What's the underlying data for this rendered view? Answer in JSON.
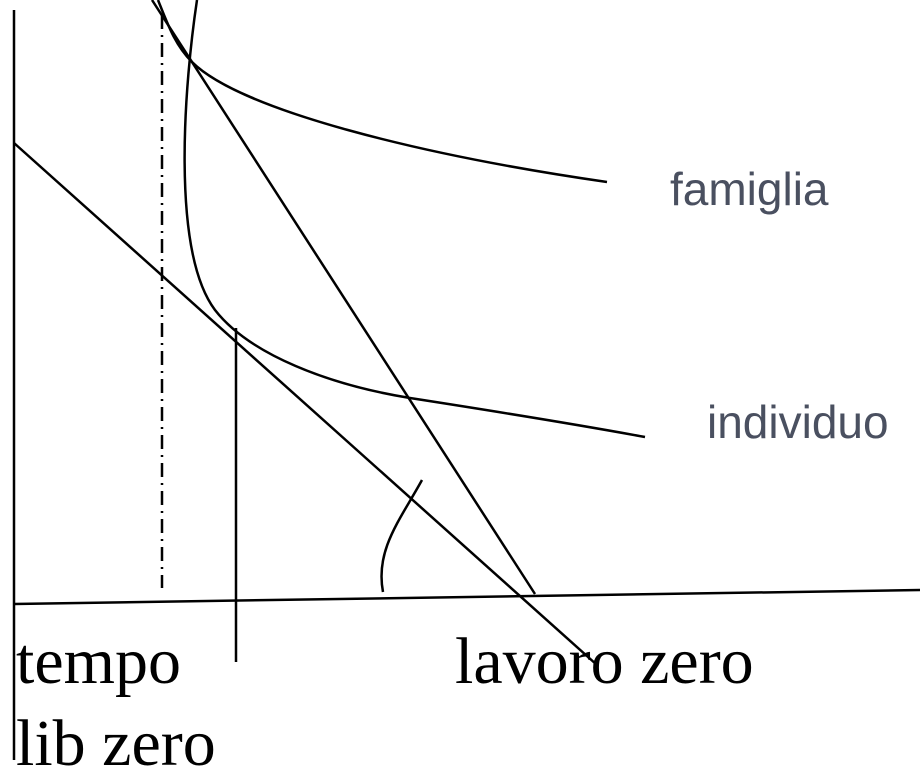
{
  "curves": {
    "family": "famiglia",
    "individual": "individuo"
  },
  "axis_labels": {
    "free_time_zero_line1": "tempo",
    "free_time_zero_line2": "lib zero",
    "work_zero": "lavoro zero"
  }
}
